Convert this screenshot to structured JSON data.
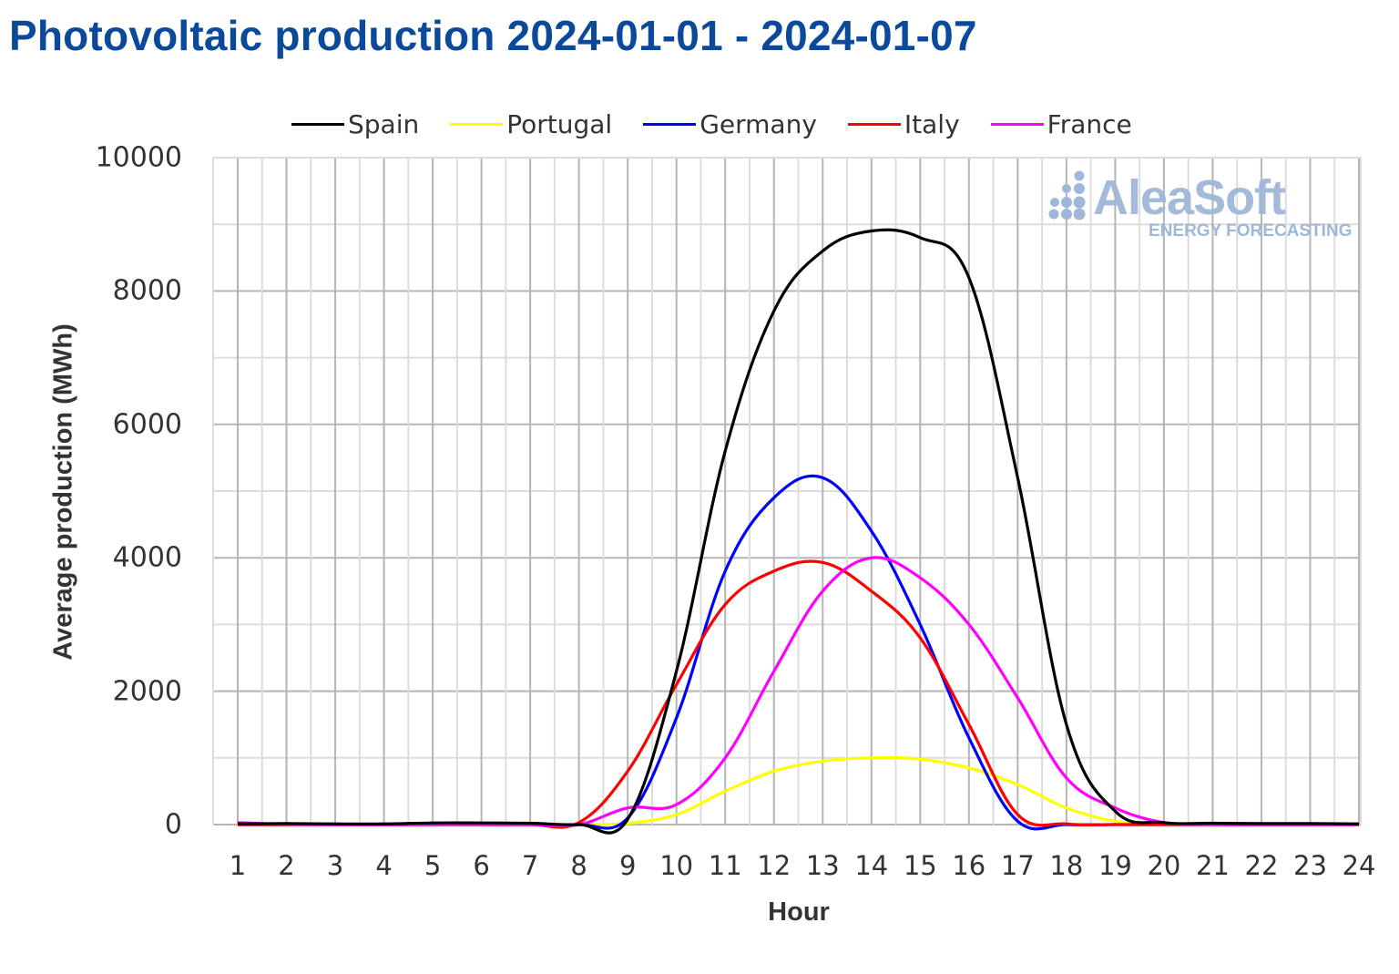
{
  "title": "Photovoltaic production 2024-01-01 - 2024-01-07",
  "watermark": {
    "brand": "AleaSoft",
    "tagline": "ENERGY FORECASTING",
    "color": "#9fb7d8"
  },
  "legend": [
    {
      "name": "Spain",
      "color": "#000000"
    },
    {
      "name": "Portugal",
      "color": "#ffff00"
    },
    {
      "name": "Germany",
      "color": "#0000ff"
    },
    {
      "name": "Italy",
      "color": "#ff0000"
    },
    {
      "name": "France",
      "color": "#ff00ff"
    }
  ],
  "axes": {
    "ylabel": "Average production (MWh)",
    "xlabel": "Hour",
    "yticks": [
      "0",
      "2000",
      "4000",
      "6000",
      "8000",
      "10000"
    ],
    "xticks": [
      "1",
      "2",
      "3",
      "4",
      "5",
      "6",
      "7",
      "8",
      "9",
      "10",
      "11",
      "12",
      "13",
      "14",
      "15",
      "16",
      "17",
      "18",
      "19",
      "20",
      "21",
      "22",
      "23",
      "24"
    ]
  },
  "chart_data": {
    "type": "line",
    "title": "Photovoltaic production 2024-01-01 - 2024-01-07",
    "xlabel": "Hour",
    "ylabel": "Average production (MWh)",
    "ylim": [
      0,
      10000
    ],
    "xlim": [
      1,
      24
    ],
    "grid": true,
    "legend_position": "top",
    "x": [
      1,
      2,
      3,
      4,
      5,
      6,
      7,
      8,
      9,
      10,
      11,
      12,
      13,
      14,
      15,
      16,
      17,
      18,
      19,
      20,
      21,
      22,
      23,
      24
    ],
    "series": [
      {
        "name": "Spain",
        "color": "#000000",
        "values": [
          10,
          15,
          10,
          10,
          25,
          25,
          20,
          0,
          80,
          2300,
          5600,
          7700,
          8600,
          8900,
          8800,
          8200,
          5200,
          1500,
          200,
          30,
          20,
          15,
          15,
          10
        ]
      },
      {
        "name": "Portugal",
        "color": "#ffff00",
        "values": [
          0,
          0,
          0,
          0,
          0,
          0,
          0,
          0,
          20,
          150,
          500,
          800,
          950,
          1000,
          980,
          850,
          600,
          250,
          50,
          0,
          0,
          0,
          0,
          0
        ]
      },
      {
        "name": "Germany",
        "color": "#0000ff",
        "values": [
          0,
          0,
          0,
          0,
          0,
          0,
          0,
          0,
          100,
          1600,
          3800,
          4900,
          5200,
          4400,
          3000,
          1300,
          50,
          0,
          0,
          0,
          0,
          0,
          0,
          0
        ]
      },
      {
        "name": "Italy",
        "color": "#ff0000",
        "values": [
          0,
          0,
          0,
          0,
          0,
          0,
          0,
          30,
          800,
          2100,
          3300,
          3800,
          3930,
          3500,
          2800,
          1500,
          150,
          10,
          0,
          0,
          0,
          0,
          0,
          0
        ]
      },
      {
        "name": "France",
        "color": "#ff00ff",
        "values": [
          30,
          5,
          0,
          0,
          0,
          0,
          0,
          0,
          250,
          300,
          1000,
          2300,
          3500,
          4000,
          3700,
          3000,
          1900,
          700,
          250,
          30,
          0,
          0,
          0,
          0
        ]
      }
    ]
  }
}
